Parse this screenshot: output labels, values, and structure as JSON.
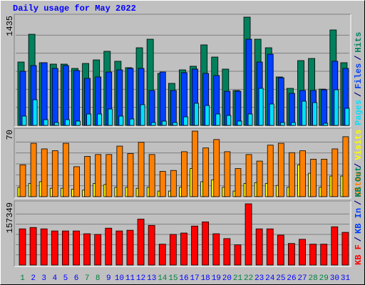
{
  "title": "Daily usage for May 2022",
  "legend_separator": "/",
  "chart_data": [
    {
      "type": "bar",
      "ylim": [
        0,
        1435
      ],
      "series": [
        {
          "name": "Pages",
          "color": "#00e0ff",
          "values": [
            123,
            340,
            76,
            38,
            76,
            57,
            151,
            151,
            217,
            123,
            85,
            274,
            38,
            57,
            38,
            113,
            293,
            264,
            151,
            132,
            57,
            151,
            491,
            283,
            38,
            38,
            321,
            302,
            28,
            472,
            227
          ]
        },
        {
          "name": "Files",
          "color": "#0040ff",
          "values": [
            717,
            793,
            831,
            755,
            793,
            727,
            623,
            642,
            708,
            736,
            755,
            755,
            463,
            708,
            463,
            699,
            746,
            689,
            661,
            453,
            453,
            1142,
            840,
            944,
            632,
            425,
            463,
            463,
            472,
            850,
            755
          ]
        },
        {
          "name": "Hits",
          "color": "#00805c",
          "values": [
            840,
            1208,
            831,
            812,
            812,
            755,
            821,
            868,
            982,
            850,
            765,
            1029,
            1142,
            689,
            557,
            736,
            784,
            1067,
            906,
            746,
            463,
            1435,
            1142,
            1029,
            642,
            491,
            859,
            887,
            481,
            1265,
            831
          ]
        }
      ]
    },
    {
      "type": "bar",
      "ylim": [
        0,
        70
      ],
      "series": [
        {
          "name": "Sites",
          "color": "#ff8000",
          "values": [
            34,
            57,
            51,
            49,
            57,
            32,
            43,
            45,
            45,
            54,
            46,
            58,
            45,
            27,
            28,
            48,
            70,
            52,
            61,
            48,
            30,
            45,
            38,
            55,
            57,
            47,
            49,
            40,
            40,
            51,
            64
          ]
        },
        {
          "name": "Visits",
          "color": "#ffff00",
          "values": [
            10,
            14,
            16,
            9,
            9,
            8,
            7,
            14,
            13,
            10,
            10,
            9,
            10,
            6,
            6,
            10,
            30,
            16,
            18,
            10,
            6,
            14,
            15,
            14,
            12,
            10,
            34,
            25,
            10,
            22,
            22
          ]
        }
      ]
    },
    {
      "type": "bar",
      "ylim": [
        0,
        157349
      ],
      "series": [
        {
          "name": "KB F",
          "color": "#ff0000",
          "values": [
            92976,
            96552,
            92976,
            87612,
            87612,
            87612,
            80460,
            78672,
            94764,
            87612,
            89400,
            118008,
            101916,
            53640,
            78672,
            82248,
            100128,
            110856,
            80460,
            67944,
            51852,
            157349,
            92976,
            92976,
            76884,
            55428,
            66156,
            53640,
            53640,
            98340,
            84036
          ]
        }
      ],
      "legend_only": [
        {
          "name": "KB In",
          "color": "#0040ff"
        },
        {
          "name": "KB Out",
          "color": "#00805c"
        }
      ],
      "categories": [
        "1",
        "2",
        "3",
        "4",
        "5",
        "6",
        "7",
        "8",
        "9",
        "10",
        "11",
        "12",
        "13",
        "14",
        "15",
        "16",
        "17",
        "18",
        "19",
        "20",
        "21",
        "22",
        "23",
        "24",
        "25",
        "26",
        "27",
        "28",
        "29",
        "30",
        "31"
      ],
      "category_colors": [
        "#008040",
        "#0000ff",
        "#0000ff",
        "#0000ff",
        "#0000ff",
        "#0000ff",
        "#008040",
        "#008040",
        "#0000ff",
        "#0000ff",
        "#0000ff",
        "#0000ff",
        "#0000ff",
        "#008040",
        "#008040",
        "#0000ff",
        "#0000ff",
        "#0000ff",
        "#0000ff",
        "#0000ff",
        "#008040",
        "#008040",
        "#0000ff",
        "#0000ff",
        "#0000ff",
        "#0000ff",
        "#0000ff",
        "#008040",
        "#008040",
        "#0000ff",
        "#0000ff"
      ]
    }
  ]
}
